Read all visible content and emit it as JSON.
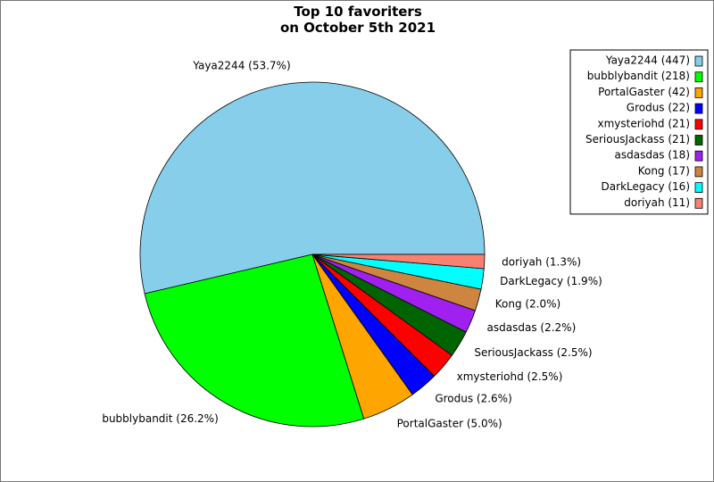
{
  "chart_data": {
    "type": "pie",
    "title": "Top 10 favoriters\non October 5th 2021",
    "categories": [
      "Yaya2244",
      "bubblybandit",
      "PortalGaster",
      "Grodus",
      "xmysteriohd",
      "SeriousJackass",
      "asdasdas",
      "Kong",
      "DarkLegacy",
      "doriyah"
    ],
    "values": [
      447,
      218,
      42,
      22,
      21,
      21,
      18,
      17,
      16,
      11
    ],
    "value_labels": [
      "Yaya2244 (53.7%)",
      "bubblybandit (26.2%)",
      "PortalGaster (5.0%)",
      "Grodus (2.6%)",
      "xmysteriohd (2.5%)",
      "SeriousJackass (2.5%)",
      "asdasdas (2.2%)",
      "Kong (2.0%)",
      "DarkLegacy (1.9%)",
      "doriyah (1.3%)"
    ],
    "legend_labels": [
      "Yaya2244 (447)",
      "bubblybandit (218)",
      "PortalGaster (42)",
      "Grodus (22)",
      "xmysteriohd (21)",
      "SeriousJackass (21)",
      "asdasdas (18)",
      "Kong (17)",
      "DarkLegacy (16)",
      "doriyah (11)"
    ],
    "colors": [
      "#87ceeb",
      "#00ff00",
      "#ffa500",
      "#0000ff",
      "#ff0000",
      "#006400",
      "#a020f0",
      "#cd853f",
      "#00ffff",
      "#fa8072"
    ],
    "legend_position": "upper right"
  }
}
